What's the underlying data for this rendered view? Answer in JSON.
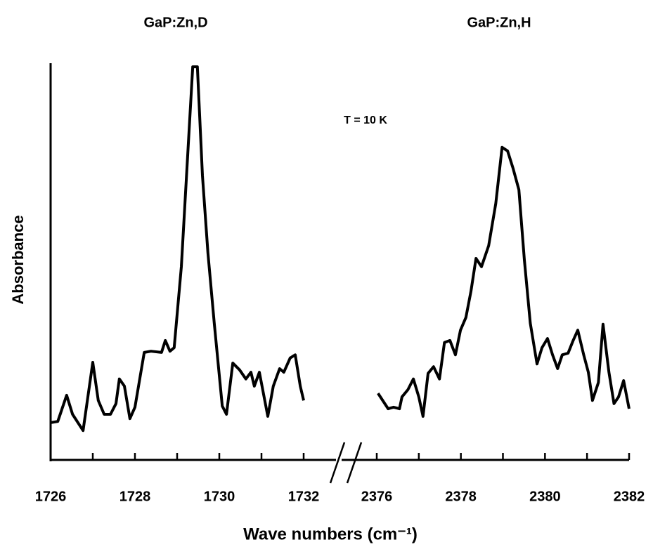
{
  "chart_data": [
    {
      "type": "line",
      "title": "GaP:Zn,D",
      "ylabel": "Absorbance",
      "xlabel": "Wave numbers (cm⁻¹)",
      "xlim": [
        1726,
        1732
      ],
      "xticks": [
        1726,
        1728,
        1730,
        1732
      ],
      "xminor": [
        1727,
        1729,
        1731
      ],
      "ylim": [
        0,
        100
      ],
      "color": "#000000",
      "x": [
        1726,
        1726.17,
        1726.38,
        1726.52,
        1726.77,
        1727.0,
        1727.13,
        1727.27,
        1727.42,
        1727.55,
        1727.63,
        1727.75,
        1727.88,
        1728.0,
        1728.22,
        1728.38,
        1728.63,
        1728.72,
        1728.83,
        1728.93,
        1729.1,
        1729.27,
        1729.37,
        1729.48,
        1729.6,
        1729.73,
        1729.88,
        1730.07,
        1730.17,
        1730.32,
        1730.48,
        1730.63,
        1730.75,
        1730.83,
        1730.95,
        1731.15,
        1731.28,
        1731.43,
        1731.53,
        1731.68,
        1731.8,
        1731.92,
        1732.0
      ],
      "values": [
        9.4,
        9.7,
        16.3,
        11.5,
        7.4,
        24.6,
        15.0,
        11.5,
        11.5,
        14.2,
        20.4,
        18.6,
        10.4,
        13.3,
        27.1,
        27.4,
        27.1,
        30.1,
        27.4,
        28.3,
        48.7,
        80.5,
        99.1,
        99.1,
        71.7,
        52.2,
        34.5,
        13.6,
        11.5,
        24.4,
        22.7,
        20.4,
        22.1,
        18.6,
        22.1,
        11.0,
        18.6,
        23.0,
        22.1,
        25.7,
        26.5,
        18.6,
        15.0
      ]
    },
    {
      "type": "line",
      "title": "GaP:Zn,H",
      "annotation": "T = 10 K",
      "xlim": [
        2376,
        2382
      ],
      "xticks": [
        2376,
        2378,
        2380,
        2382
      ],
      "xminor": [
        2377,
        2379,
        2381
      ],
      "ylim": [
        0,
        100
      ],
      "color": "#000000",
      "x": [
        2376.03,
        2376.27,
        2376.4,
        2376.54,
        2376.6,
        2376.74,
        2376.87,
        2377.0,
        2377.1,
        2377.22,
        2377.35,
        2377.49,
        2377.61,
        2377.74,
        2377.87,
        2377.99,
        2378.12,
        2378.24,
        2378.36,
        2378.49,
        2378.66,
        2378.83,
        2378.98,
        2379.11,
        2379.24,
        2379.38,
        2379.51,
        2379.65,
        2379.81,
        2379.93,
        2380.06,
        2380.18,
        2380.3,
        2380.41,
        2380.55,
        2380.67,
        2380.78,
        2380.92,
        2381.03,
        2381.13,
        2381.27,
        2381.38,
        2381.52,
        2381.64,
        2381.75,
        2381.87,
        2382.0
      ],
      "values": [
        16.8,
        12.9,
        13.3,
        12.9,
        15.9,
        17.7,
        20.4,
        15.9,
        11.0,
        21.8,
        23.5,
        20.4,
        29.6,
        30.1,
        26.5,
        32.7,
        35.9,
        42.5,
        50.8,
        48.7,
        54.0,
        64.6,
        78.8,
        77.9,
        73.5,
        68.1,
        50.4,
        34.5,
        24.2,
        28.3,
        30.6,
        26.5,
        23.0,
        26.5,
        26.9,
        30.1,
        32.7,
        26.5,
        22.1,
        15.0,
        19.5,
        34.2,
        22.1,
        14.2,
        15.9,
        20.0,
        12.9
      ]
    }
  ]
}
